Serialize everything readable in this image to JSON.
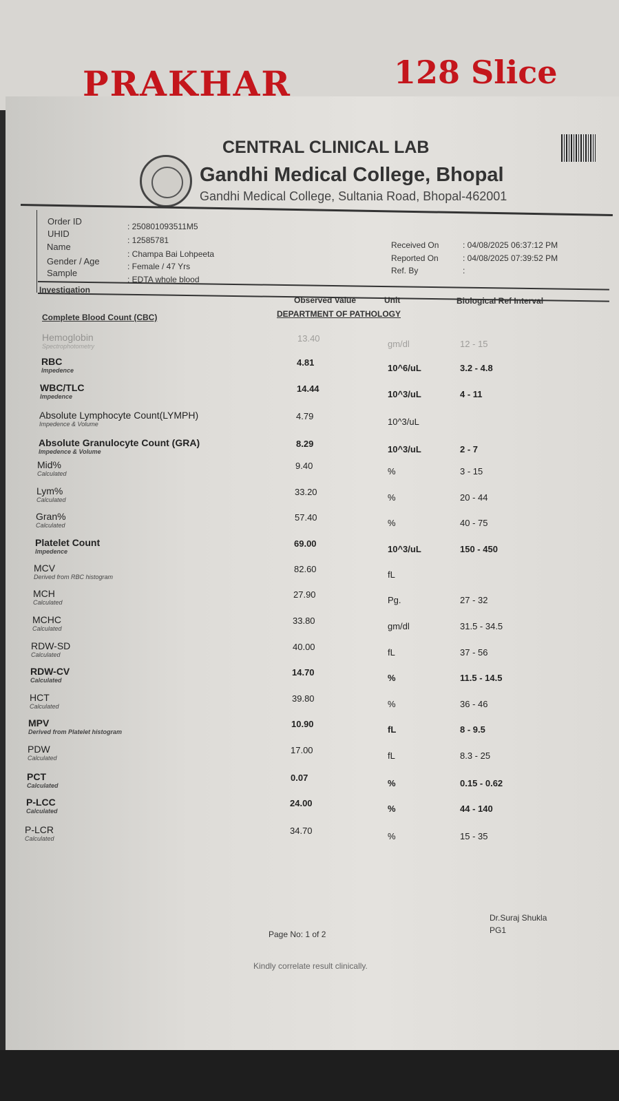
{
  "banner": {
    "left": "PRAKHAR",
    "right": "128 Slice"
  },
  "header": {
    "lab": "CENTRAL CLINICAL LAB",
    "college": "Gandhi Medical College, Bhopal",
    "address": "Gandhi Medical College, Sultania Road, Bhopal-462001"
  },
  "patient": {
    "order_id_label": "Order ID",
    "order_id": ": 250801093511M5",
    "uhid_label": "UHID",
    "uhid": ": 12585781",
    "name_label": "Name",
    "name": ": Champa Bai Lohpeeta",
    "gender_age_label": "Gender / Age",
    "gender_age": ": Female / 47 Yrs",
    "sample_label": "Sample",
    "sample": ": EDTA whole blood",
    "received_label": "Received On",
    "received": ": 04/08/2025 06:37:12 PM",
    "reported_label": "Reported On",
    "reported": ": 04/08/2025 07:39:52 PM",
    "ref_label": "Ref. By",
    "ref": ":"
  },
  "table": {
    "investigation": "Investigation",
    "observed": "Observed Value",
    "unit": "Unit",
    "ref": "Biological Ref Interval",
    "department": "DEPARTMENT OF PATHOLOGY",
    "section": "Complete Blood Count (CBC)",
    "rows": [
      {
        "name": "Hemoglobin",
        "method": "Spectrophotometry",
        "value": "13.40",
        "unit": "gm/dl",
        "ref": "12 - 15",
        "bold": false,
        "faded": true
      },
      {
        "name": "RBC",
        "method": "Impedence",
        "value": "4.81",
        "unit": "10^6/uL",
        "ref": "3.2 - 4.8",
        "bold": true
      },
      {
        "name": "WBC/TLC",
        "method": "Impedence",
        "value": "14.44",
        "unit": "10^3/uL",
        "ref": "4 - 11",
        "bold": true
      },
      {
        "name": "Absolute Lymphocyte Count(LYMPH)",
        "method": "Impedence & Volume",
        "value": "4.79",
        "unit": "10^3/uL",
        "ref": "",
        "bold": false
      },
      {
        "name": "Absolute Granulocyte Count (GRA)",
        "method": "Impedence & Volume",
        "value": "8.29",
        "unit": "10^3/uL",
        "ref": "2 - 7",
        "bold": true
      },
      {
        "name": "Mid%",
        "method": "Calculated",
        "value": "9.40",
        "unit": "%",
        "ref": "3 - 15",
        "bold": false
      },
      {
        "name": "Lym%",
        "method": "Calculated",
        "value": "33.20",
        "unit": "%",
        "ref": "20 - 44",
        "bold": false
      },
      {
        "name": "Gran%",
        "method": "Calculated",
        "value": "57.40",
        "unit": "%",
        "ref": "40 - 75",
        "bold": false
      },
      {
        "name": "Platelet Count",
        "method": "Impedence",
        "value": "69.00",
        "unit": "10^3/uL",
        "ref": "150 - 450",
        "bold": true
      },
      {
        "name": "MCV",
        "method": "Derived from RBC histogram",
        "value": "82.60",
        "unit": "fL",
        "ref": "",
        "bold": false
      },
      {
        "name": "MCH",
        "method": "Calculated",
        "value": "27.90",
        "unit": "Pg.",
        "ref": "27 - 32",
        "bold": false
      },
      {
        "name": "MCHC",
        "method": "Calculated",
        "value": "33.80",
        "unit": "gm/dl",
        "ref": "31.5 - 34.5",
        "bold": false
      },
      {
        "name": "RDW-SD",
        "method": "Calculated",
        "value": "40.00",
        "unit": "fL",
        "ref": "37 - 56",
        "bold": false
      },
      {
        "name": "RDW-CV",
        "method": "Calculated",
        "value": "14.70",
        "unit": "%",
        "ref": "11.5 - 14.5",
        "bold": true
      },
      {
        "name": "HCT",
        "method": "Calculated",
        "value": "39.80",
        "unit": "%",
        "ref": "36 - 46",
        "bold": false
      },
      {
        "name": "MPV",
        "method": "Derived from Platelet histogram",
        "value": "10.90",
        "unit": "fL",
        "ref": "8 - 9.5",
        "bold": true
      },
      {
        "name": "PDW",
        "method": "Calculated",
        "value": "17.00",
        "unit": "fL",
        "ref": "8.3 - 25",
        "bold": false
      },
      {
        "name": "PCT",
        "method": "Calculated",
        "value": "0.07",
        "unit": "%",
        "ref": "0.15 - 0.62",
        "bold": true
      },
      {
        "name": "P-LCC",
        "method": "Calculated",
        "value": "24.00",
        "unit": "%",
        "ref": "44 - 140",
        "bold": true
      },
      {
        "name": "P-LCR",
        "method": "Calculated",
        "value": "34.70",
        "unit": "%",
        "ref": "15 - 35",
        "bold": false
      }
    ]
  },
  "footer": {
    "doctor": "Dr.Suraj Shukla",
    "designation": "PG1",
    "page": "Page No: 1 of 2",
    "note": "Kindly correlate result clinically."
  }
}
